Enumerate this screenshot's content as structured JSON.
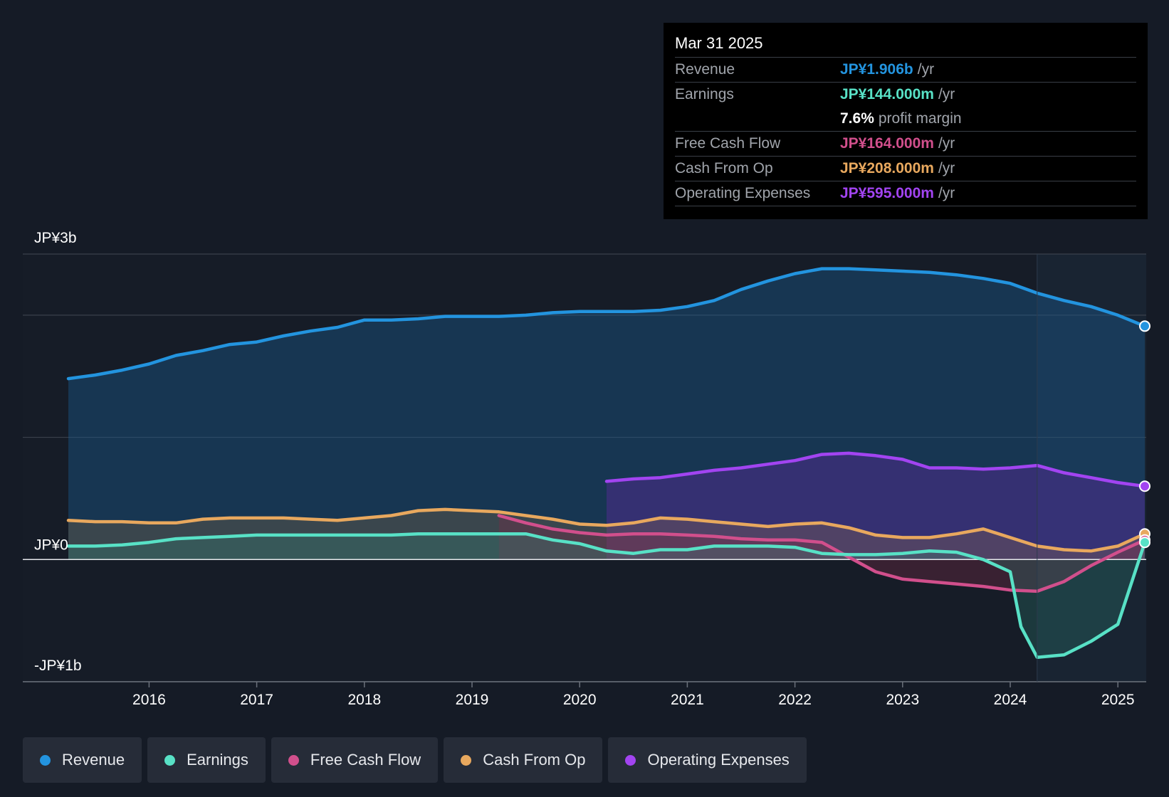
{
  "colors": {
    "background": "#151b26",
    "revenue": "#2394df",
    "earnings": "#58e1c6",
    "fcf": "#d14f8c",
    "cfo": "#e8a85e",
    "opex": "#a244f1",
    "grid": "#3a404b",
    "zero": "#e6e8ec"
  },
  "tooltip": {
    "date": "Mar 31 2025",
    "rows": [
      {
        "label": "Revenue",
        "value": "JP¥1.906b",
        "unit": "/yr",
        "color": "#2394df"
      },
      {
        "label": "Earnings",
        "value": "JP¥144.000m",
        "unit": "/yr",
        "color": "#58e1c6"
      },
      {
        "label": "",
        "value": "7.6%",
        "unit": "profit margin",
        "color": "#ffffff"
      },
      {
        "label": "Free Cash Flow",
        "value": "JP¥164.000m",
        "unit": "/yr",
        "color": "#d14f8c"
      },
      {
        "label": "Cash From Op",
        "value": "JP¥208.000m",
        "unit": "/yr",
        "color": "#e8a85e"
      },
      {
        "label": "Operating Expenses",
        "value": "JP¥595.000m",
        "unit": "/yr",
        "color": "#a244f1"
      }
    ]
  },
  "legend": [
    {
      "label": "Revenue",
      "color": "#2394df"
    },
    {
      "label": "Earnings",
      "color": "#58e1c6"
    },
    {
      "label": "Free Cash Flow",
      "color": "#d14f8c"
    },
    {
      "label": "Cash From Op",
      "color": "#e8a85e"
    },
    {
      "label": "Operating Expenses",
      "color": "#a244f1"
    }
  ],
  "chart_data": {
    "type": "line",
    "title": "",
    "xlabel": "",
    "ylabel": "",
    "y_unit": "JP¥ billions",
    "ylim": [
      -1.0,
      2.5
    ],
    "y_gridlines": [
      -1.0,
      0.0,
      1.0,
      2.0,
      2.5
    ],
    "y_tick_labels": [
      {
        "value": 2.5,
        "label": "JP¥3b"
      },
      {
        "value": 0.0,
        "label": "JP¥0"
      },
      {
        "value": -1.0,
        "label": "-JP¥1b"
      }
    ],
    "xlim": [
      2015.25,
      2025.25
    ],
    "x_ticks": [
      2016,
      2017,
      2018,
      2019,
      2020,
      2021,
      2022,
      2023,
      2024,
      2025
    ],
    "x_tick_labels": [
      "2016",
      "2017",
      "2018",
      "2019",
      "2020",
      "2021",
      "2022",
      "2023",
      "2024",
      "2025"
    ],
    "highlight_start": 2024.25,
    "series": [
      {
        "name": "Revenue",
        "key": "revenue",
        "x": [
          2015.25,
          2015.5,
          2015.75,
          2016.0,
          2016.25,
          2016.5,
          2016.75,
          2017.0,
          2017.25,
          2017.5,
          2017.75,
          2018.0,
          2018.25,
          2018.5,
          2018.75,
          2019.0,
          2019.25,
          2019.5,
          2019.75,
          2020.0,
          2020.25,
          2020.5,
          2020.75,
          2021.0,
          2021.25,
          2021.5,
          2021.75,
          2022.0,
          2022.25,
          2022.5,
          2022.75,
          2023.0,
          2023.25,
          2023.5,
          2023.75,
          2024.0,
          2024.25,
          2024.5,
          2024.75,
          2025.0,
          2025.25
        ],
        "values": [
          1.48,
          1.51,
          1.55,
          1.6,
          1.67,
          1.71,
          1.76,
          1.78,
          1.83,
          1.87,
          1.9,
          1.96,
          1.96,
          1.97,
          1.99,
          1.99,
          1.99,
          2.0,
          2.02,
          2.03,
          2.03,
          2.03,
          2.04,
          2.07,
          2.12,
          2.21,
          2.28,
          2.34,
          2.38,
          2.38,
          2.37,
          2.36,
          2.35,
          2.33,
          2.3,
          2.26,
          2.18,
          2.12,
          2.07,
          2.0,
          1.91
        ]
      },
      {
        "name": "Earnings",
        "key": "earnings",
        "x": [
          2015.25,
          2015.5,
          2015.75,
          2016.0,
          2016.25,
          2016.5,
          2016.75,
          2017.0,
          2017.25,
          2017.5,
          2017.75,
          2018.0,
          2018.25,
          2018.5,
          2018.75,
          2019.0,
          2019.25,
          2019.5,
          2019.75,
          2020.0,
          2020.25,
          2020.5,
          2020.75,
          2021.0,
          2021.25,
          2021.5,
          2021.75,
          2022.0,
          2022.25,
          2022.5,
          2022.75,
          2023.0,
          2023.25,
          2023.5,
          2023.75,
          2024.0,
          2024.1,
          2024.25,
          2024.5,
          2024.75,
          2025.0,
          2025.25
        ],
        "values": [
          0.11,
          0.11,
          0.12,
          0.14,
          0.17,
          0.18,
          0.19,
          0.2,
          0.2,
          0.2,
          0.2,
          0.2,
          0.2,
          0.21,
          0.21,
          0.21,
          0.21,
          0.21,
          0.16,
          0.13,
          0.07,
          0.05,
          0.08,
          0.08,
          0.11,
          0.11,
          0.11,
          0.1,
          0.05,
          0.04,
          0.04,
          0.05,
          0.07,
          0.06,
          0.0,
          -0.1,
          -0.55,
          -0.8,
          -0.78,
          -0.67,
          -0.53,
          0.14
        ]
      },
      {
        "name": "Free Cash Flow",
        "key": "fcf",
        "x": [
          2019.25,
          2019.5,
          2019.75,
          2020.0,
          2020.25,
          2020.5,
          2020.75,
          2021.0,
          2021.25,
          2021.5,
          2021.75,
          2022.0,
          2022.25,
          2022.5,
          2022.75,
          2023.0,
          2023.25,
          2023.5,
          2023.75,
          2024.0,
          2024.25,
          2024.5,
          2024.75,
          2025.0,
          2025.25
        ],
        "values": [
          0.36,
          0.3,
          0.25,
          0.22,
          0.2,
          0.21,
          0.21,
          0.2,
          0.19,
          0.17,
          0.16,
          0.16,
          0.14,
          0.02,
          -0.1,
          -0.16,
          -0.18,
          -0.2,
          -0.22,
          -0.25,
          -0.26,
          -0.18,
          -0.05,
          0.06,
          0.16
        ]
      },
      {
        "name": "Cash From Op",
        "key": "cfo",
        "x": [
          2015.25,
          2015.5,
          2015.75,
          2016.0,
          2016.25,
          2016.5,
          2016.75,
          2017.0,
          2017.25,
          2017.5,
          2017.75,
          2018.0,
          2018.25,
          2018.5,
          2018.75,
          2019.0,
          2019.25,
          2019.5,
          2019.75,
          2020.0,
          2020.25,
          2020.5,
          2020.75,
          2021.0,
          2021.25,
          2021.5,
          2021.75,
          2022.0,
          2022.25,
          2022.5,
          2022.75,
          2023.0,
          2023.25,
          2023.5,
          2023.75,
          2024.0,
          2024.25,
          2024.5,
          2024.75,
          2025.0,
          2025.25
        ],
        "values": [
          0.32,
          0.31,
          0.31,
          0.3,
          0.3,
          0.33,
          0.34,
          0.34,
          0.34,
          0.33,
          0.32,
          0.34,
          0.36,
          0.4,
          0.41,
          0.4,
          0.39,
          0.36,
          0.33,
          0.29,
          0.28,
          0.3,
          0.34,
          0.33,
          0.31,
          0.29,
          0.27,
          0.29,
          0.3,
          0.26,
          0.2,
          0.18,
          0.18,
          0.21,
          0.25,
          0.18,
          0.11,
          0.08,
          0.07,
          0.11,
          0.21
        ]
      },
      {
        "name": "Operating Expenses",
        "key": "opex",
        "x": [
          2020.25,
          2020.5,
          2020.75,
          2021.0,
          2021.25,
          2021.5,
          2021.75,
          2022.0,
          2022.25,
          2022.5,
          2022.75,
          2023.0,
          2023.25,
          2023.5,
          2023.75,
          2024.0,
          2024.25,
          2024.5,
          2024.75,
          2025.0,
          2025.25
        ],
        "values": [
          0.64,
          0.66,
          0.67,
          0.7,
          0.73,
          0.75,
          0.78,
          0.81,
          0.86,
          0.87,
          0.85,
          0.82,
          0.75,
          0.75,
          0.74,
          0.75,
          0.77,
          0.71,
          0.67,
          0.63,
          0.6
        ]
      }
    ]
  }
}
